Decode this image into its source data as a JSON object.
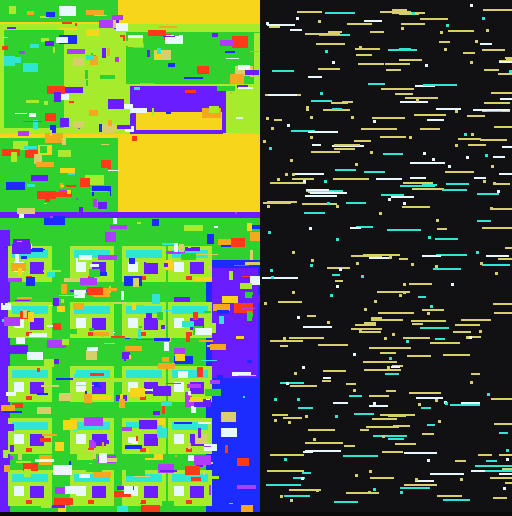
{
  "image": {
    "kind": "die micrograph",
    "colors": {
      "background": "#0a0a0a",
      "dark_region": "#111114",
      "yellow": "#f6d51a",
      "orange": "#f2a91d",
      "green": "#2fd12f",
      "lime": "#a6ec2d",
      "cyan": "#2fe6d4",
      "blue": "#1c2cff",
      "purple": "#6a1dff",
      "magenta": "#b03cff",
      "red": "#ff3a1a",
      "white": "#e9f7ff",
      "khaki": "#d6cf6a"
    },
    "icon_names": [
      "circuit-tiles",
      "metal-traces",
      "dark-die-area"
    ]
  }
}
